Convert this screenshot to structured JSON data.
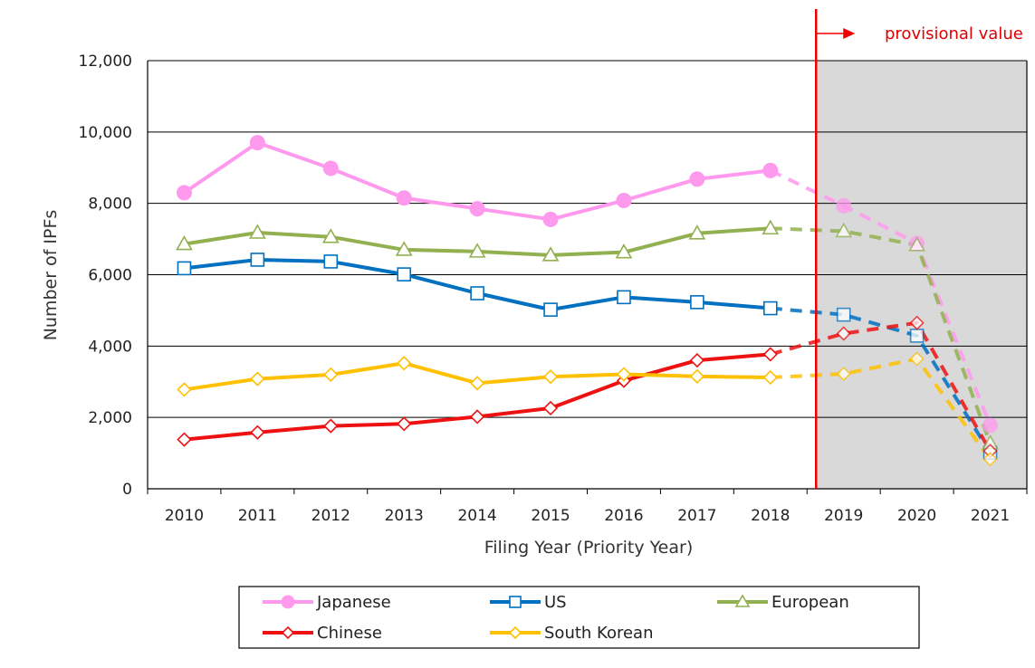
{
  "chart_data": {
    "type": "line",
    "title": "",
    "xlabel": "Filing Year (Priority Year)",
    "ylabel": "Number of IPFs",
    "x": [
      "2010",
      "2011",
      "2012",
      "2013",
      "2014",
      "2015",
      "2016",
      "2017",
      "2018",
      "2019",
      "2020",
      "2021"
    ],
    "ylim": [
      0,
      12000
    ],
    "yticks": [
      0,
      2000,
      4000,
      6000,
      8000,
      10000,
      12000
    ],
    "ytick_labels": [
      "0",
      "2,000",
      "4,000",
      "6,000",
      "8,000",
      "10,000",
      "12,000"
    ],
    "grid": true,
    "legend_position": "bottom",
    "provisional_from": "2019",
    "annotation": "provisional value",
    "series": [
      {
        "name": "Japanese",
        "color": "#ff99ee",
        "marker": "circle",
        "values": [
          8300,
          9700,
          8980,
          8150,
          7850,
          7550,
          8080,
          8680,
          8920,
          7930,
          6880,
          1780
        ]
      },
      {
        "name": "US",
        "color": "#0070c0",
        "marker": "square",
        "values": [
          6180,
          6420,
          6370,
          6010,
          5480,
          5020,
          5370,
          5230,
          5060,
          4880,
          4290,
          1010
        ]
      },
      {
        "name": "European",
        "color": "#92b050",
        "marker": "triangle",
        "values": [
          6860,
          7180,
          7060,
          6700,
          6650,
          6550,
          6630,
          7160,
          7300,
          7220,
          6830,
          1280
        ]
      },
      {
        "name": "Chinese",
        "color": "#ee1111",
        "marker": "diamond",
        "values": [
          1380,
          1580,
          1760,
          1820,
          2020,
          2260,
          3030,
          3600,
          3770,
          4350,
          4650,
          1060
        ]
      },
      {
        "name": "South Korean",
        "color": "#ffc000",
        "marker": "diamond",
        "values": [
          2780,
          3080,
          3200,
          3520,
          2960,
          3140,
          3210,
          3150,
          3120,
          3220,
          3640,
          830
        ]
      }
    ]
  }
}
